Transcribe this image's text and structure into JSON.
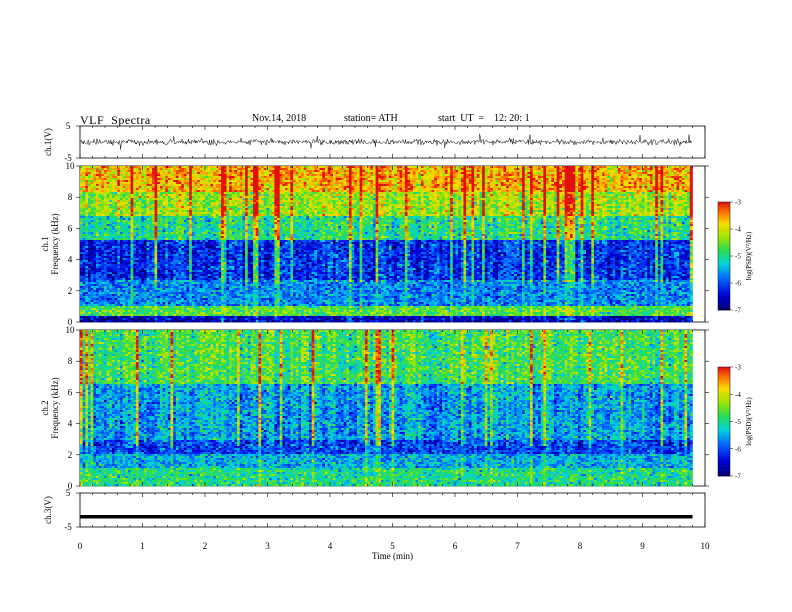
{
  "header": {
    "title": "VLF  Spectra",
    "date": "Nov.14, 2018",
    "station": "station= ATH",
    "start_ut": "start  UT  =    12: 20: 1"
  },
  "chart_data": [
    {
      "type": "line",
      "panel": "ch1-waveform",
      "ylabel": "ch.1(V)",
      "ylim": [
        -5,
        5
      ],
      "y_ticks": [
        "5",
        "-5"
      ],
      "xlim": [
        0,
        10
      ],
      "description_values": "noisy waveform centered near 0 V, amplitude mostly within about ±1.5 V with spikes to about ±2.5 V, data ending near 9.8 min",
      "color": "#000000"
    },
    {
      "type": "heatmap",
      "panel": "ch1-spectrogram",
      "ylabel_line1": "ch.1",
      "ylabel_line2": "Frequency  (kHz)",
      "ylim": [
        0,
        10
      ],
      "y_ticks": [
        "0",
        "2",
        "4",
        "6",
        "8",
        "10"
      ],
      "xlim": [
        0,
        10
      ],
      "data_end_min": 9.8,
      "colorbar": {
        "label": "log(PSD)(V²/Hz)",
        "range": [
          -7,
          -3
        ],
        "ticks": [
          "-3",
          "-4",
          "-5",
          "-6",
          "-7"
        ]
      },
      "level_profile": [
        {
          "f_khz": [
            0.0,
            0.4
          ],
          "level": -6.6
        },
        {
          "f_khz": [
            0.4,
            1.0
          ],
          "level": -4.7
        },
        {
          "f_khz": [
            1.0,
            2.7
          ],
          "level": -5.7
        },
        {
          "f_khz": [
            2.7,
            5.3
          ],
          "level": -6.2
        },
        {
          "f_khz": [
            5.3,
            6.8
          ],
          "level": -5.0
        },
        {
          "f_khz": [
            6.8,
            8.3
          ],
          "level": -4.3
        },
        {
          "f_khz": [
            8.3,
            10.0
          ],
          "level": -3.7
        }
      ]
    },
    {
      "type": "heatmap",
      "panel": "ch2-spectrogram",
      "ylabel_line1": "ch.2",
      "ylabel_line2": "Frequency  (kHz)",
      "ylim": [
        0,
        10
      ],
      "y_ticks": [
        "0",
        "2",
        "4",
        "6",
        "8",
        "10"
      ],
      "xlim": [
        0,
        10
      ],
      "data_end_min": 9.8,
      "colorbar": {
        "label": "log(PSD)(V²/Hz)",
        "range": [
          -7,
          -3
        ],
        "ticks": [
          "-3",
          "-4",
          "-5",
          "-6",
          "-7"
        ]
      },
      "level_profile": [
        {
          "f_khz": [
            0.0,
            1.2
          ],
          "level": -5.0
        },
        {
          "f_khz": [
            1.2,
            2.0
          ],
          "level": -5.5
        },
        {
          "f_khz": [
            2.0,
            3.0
          ],
          "level": -6.1
        },
        {
          "f_khz": [
            3.0,
            6.5
          ],
          "level": -5.6
        },
        {
          "f_khz": [
            6.5,
            10.0
          ],
          "level": -4.8
        }
      ]
    },
    {
      "type": "line",
      "panel": "ch3-waveform",
      "ylabel": "ch.3(V)",
      "ylim": [
        -5,
        5
      ],
      "y_ticks": [
        "5",
        "-5"
      ],
      "xlim": [
        0,
        10
      ],
      "xlabel": "Time  (min)",
      "x_ticks": [
        "0",
        "1",
        "2",
        "3",
        "4",
        "5",
        "6",
        "7",
        "8",
        "9",
        "10"
      ],
      "constant_value": -2.0,
      "data_end_min": 9.8,
      "color": "#000000"
    }
  ]
}
